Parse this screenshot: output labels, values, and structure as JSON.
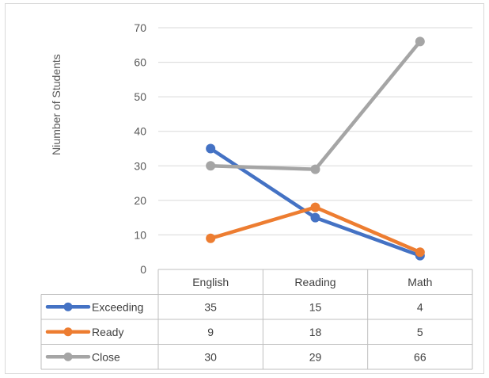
{
  "chart_data": {
    "type": "line",
    "categories": [
      "English",
      "Reading",
      "Math"
    ],
    "series": [
      {
        "name": "Exceeding",
        "values": [
          35,
          15,
          4
        ],
        "color": "#4472c4"
      },
      {
        "name": "Ready",
        "values": [
          9,
          18,
          5
        ],
        "color": "#ed7d31"
      },
      {
        "name": "Close",
        "values": [
          30,
          29,
          66
        ],
        "color": "#a5a5a5"
      }
    ],
    "title": "",
    "xlabel": "",
    "ylabel": "Niumber of Students",
    "ylim": [
      0,
      70
    ],
    "yticks": [
      0,
      10,
      20,
      30,
      40,
      50,
      60,
      70
    ],
    "grid": true,
    "legend": "data-table"
  }
}
